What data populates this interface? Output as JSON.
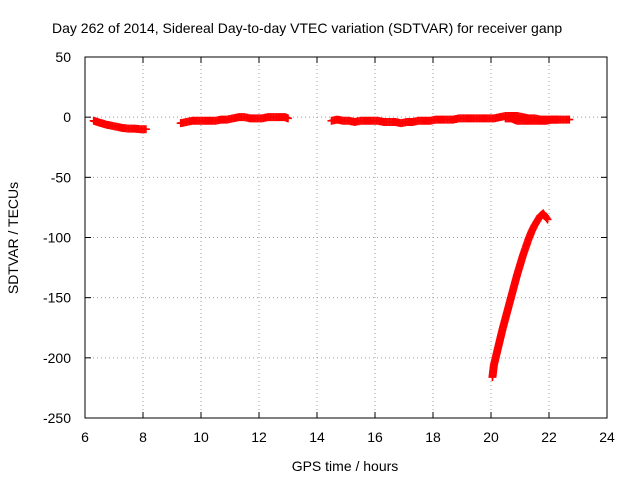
{
  "chart_data": {
    "type": "scatter",
    "title": "Day 262 of 2014, Sidereal Day-to-day VTEC variation (SDTVAR) for receiver ganp",
    "xlabel": "GPS time / hours",
    "ylabel": "SDTVAR / TECUs",
    "xlim": [
      6,
      24
    ],
    "ylim": [
      -250,
      50
    ],
    "xticks": [
      6,
      8,
      10,
      12,
      14,
      16,
      18,
      20,
      22,
      24
    ],
    "yticks": [
      50,
      0,
      -50,
      -100,
      -150,
      -200,
      -250
    ],
    "grid": true,
    "marker": "+",
    "color": "#ff0000",
    "series": [
      {
        "name": "segment-1",
        "points": [
          [
            6.3,
            -3
          ],
          [
            6.5,
            -4.5
          ],
          [
            6.7,
            -6
          ],
          [
            6.9,
            -7
          ],
          [
            7.1,
            -8
          ],
          [
            7.3,
            -9
          ],
          [
            7.5,
            -9.5
          ],
          [
            7.7,
            -9.5
          ],
          [
            7.9,
            -10
          ],
          [
            8.1,
            -10
          ]
        ]
      },
      {
        "name": "segment-2",
        "points": [
          [
            9.3,
            -5
          ],
          [
            9.5,
            -4
          ],
          [
            9.7,
            -3
          ],
          [
            9.9,
            -3
          ],
          [
            10.1,
            -3
          ],
          [
            10.3,
            -3
          ],
          [
            10.5,
            -3
          ],
          [
            10.7,
            -2
          ],
          [
            10.9,
            -2
          ],
          [
            11.1,
            -1
          ],
          [
            11.3,
            0
          ],
          [
            11.5,
            0
          ],
          [
            11.7,
            -1
          ],
          [
            11.9,
            -1
          ],
          [
            12.1,
            -1
          ],
          [
            12.3,
            0
          ],
          [
            12.5,
            0
          ],
          [
            12.7,
            0
          ],
          [
            12.9,
            0
          ],
          [
            13.0,
            -1
          ]
        ]
      },
      {
        "name": "segment-3",
        "points": [
          [
            14.5,
            -3
          ],
          [
            14.7,
            -2
          ],
          [
            14.9,
            -3
          ],
          [
            15.1,
            -3
          ],
          [
            15.3,
            -4
          ],
          [
            15.5,
            -3
          ],
          [
            15.7,
            -3
          ],
          [
            15.9,
            -3
          ],
          [
            16.1,
            -3
          ],
          [
            16.3,
            -4
          ],
          [
            16.5,
            -4
          ],
          [
            16.7,
            -4
          ],
          [
            16.9,
            -5
          ],
          [
            17.1,
            -4
          ],
          [
            17.3,
            -4
          ],
          [
            17.5,
            -3
          ],
          [
            17.7,
            -3
          ],
          [
            17.9,
            -3
          ],
          [
            18.1,
            -2
          ],
          [
            18.3,
            -2
          ],
          [
            18.5,
            -2
          ],
          [
            18.7,
            -2
          ],
          [
            18.9,
            -1
          ],
          [
            19.1,
            -1
          ],
          [
            19.3,
            -1
          ],
          [
            19.5,
            -1
          ],
          [
            19.7,
            -1
          ],
          [
            19.9,
            -1
          ],
          [
            20.1,
            -1
          ],
          [
            20.3,
            0
          ],
          [
            20.5,
            1
          ],
          [
            20.7,
            1
          ],
          [
            20.9,
            1
          ],
          [
            21.1,
            0
          ],
          [
            21.3,
            -1
          ],
          [
            21.5,
            -1
          ],
          [
            21.7,
            -2
          ],
          [
            21.9,
            -2
          ],
          [
            22.1,
            -2
          ],
          [
            22.3,
            -2
          ],
          [
            22.5,
            -2
          ],
          [
            22.7,
            -2
          ]
        ]
      },
      {
        "name": "segment-4",
        "points": [
          [
            20.5,
            -1
          ],
          [
            20.7,
            -1
          ],
          [
            20.9,
            -3
          ],
          [
            21.1,
            -3
          ],
          [
            21.3,
            -3
          ],
          [
            21.5,
            -3
          ],
          [
            21.7,
            -3
          ],
          [
            21.9,
            -3
          ],
          [
            22.1,
            -2
          ],
          [
            22.3,
            -2
          ]
        ]
      },
      {
        "name": "segment-5",
        "points": [
          [
            20.05,
            -216
          ],
          [
            20.1,
            -206
          ],
          [
            20.2,
            -196
          ],
          [
            20.3,
            -186
          ],
          [
            20.4,
            -176
          ],
          [
            20.5,
            -167
          ],
          [
            20.6,
            -158
          ],
          [
            20.7,
            -149
          ],
          [
            20.8,
            -140
          ],
          [
            20.9,
            -131
          ],
          [
            21.0,
            -123
          ],
          [
            21.1,
            -115
          ],
          [
            21.2,
            -108
          ],
          [
            21.3,
            -101
          ],
          [
            21.4,
            -95
          ],
          [
            21.5,
            -90
          ],
          [
            21.6,
            -86
          ],
          [
            21.7,
            -82
          ],
          [
            21.8,
            -80
          ],
          [
            21.95,
            -85
          ]
        ]
      }
    ]
  }
}
